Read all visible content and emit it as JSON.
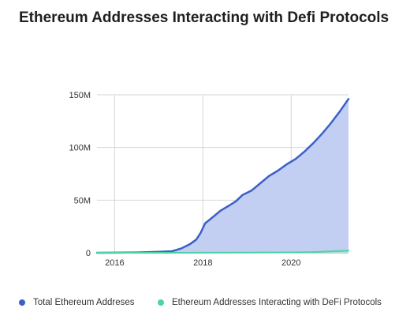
{
  "chart_data": {
    "type": "area",
    "title": "Ethereum Addresses Interacting with Defi Protocols",
    "xlabel": "",
    "ylabel": "",
    "xlim": [
      2015.6,
      2021.3
    ],
    "ylim": [
      0,
      150000000
    ],
    "x_ticks": [
      {
        "value": 2016,
        "label": "2016"
      },
      {
        "value": 2018,
        "label": "2018"
      },
      {
        "value": 2020,
        "label": "2020"
      }
    ],
    "y_ticks": [
      {
        "value": 0,
        "label": "0"
      },
      {
        "value": 50000000,
        "label": "50M"
      },
      {
        "value": 100000000,
        "label": "100M"
      },
      {
        "value": 150000000,
        "label": "150M"
      }
    ],
    "grid": true,
    "legend_position": "bottom",
    "series": [
      {
        "name": "Total Ethereum Addreses",
        "color": "#3c5fc8",
        "fill": "#c2cff2",
        "points": [
          [
            2015.6,
            0
          ],
          [
            2016.0,
            100000
          ],
          [
            2016.5,
            300000
          ],
          [
            2017.0,
            1000000
          ],
          [
            2017.3,
            1500000
          ],
          [
            2017.5,
            4000000
          ],
          [
            2017.7,
            8000000
          ],
          [
            2017.85,
            12500000
          ],
          [
            2017.95,
            19000000
          ],
          [
            2018.05,
            28000000
          ],
          [
            2018.2,
            33000000
          ],
          [
            2018.4,
            40000000
          ],
          [
            2018.6,
            45000000
          ],
          [
            2018.75,
            49000000
          ],
          [
            2018.9,
            55000000
          ],
          [
            2019.1,
            59000000
          ],
          [
            2019.3,
            66000000
          ],
          [
            2019.5,
            73000000
          ],
          [
            2019.7,
            78000000
          ],
          [
            2019.9,
            84000000
          ],
          [
            2020.1,
            89000000
          ],
          [
            2020.3,
            96000000
          ],
          [
            2020.5,
            104000000
          ],
          [
            2020.7,
            113000000
          ],
          [
            2020.9,
            123000000
          ],
          [
            2021.1,
            134000000
          ],
          [
            2021.3,
            146000000
          ]
        ]
      },
      {
        "name": "Ethereum Addresses Interacting with DeFi Protocols",
        "color": "#4dd2a4",
        "fill": "#a6e8d0",
        "points": [
          [
            2015.6,
            0
          ],
          [
            2017.0,
            0
          ],
          [
            2018.0,
            100000
          ],
          [
            2019.0,
            200000
          ],
          [
            2020.0,
            400000
          ],
          [
            2020.5,
            700000
          ],
          [
            2021.0,
            1500000
          ],
          [
            2021.3,
            2000000
          ]
        ]
      }
    ]
  }
}
